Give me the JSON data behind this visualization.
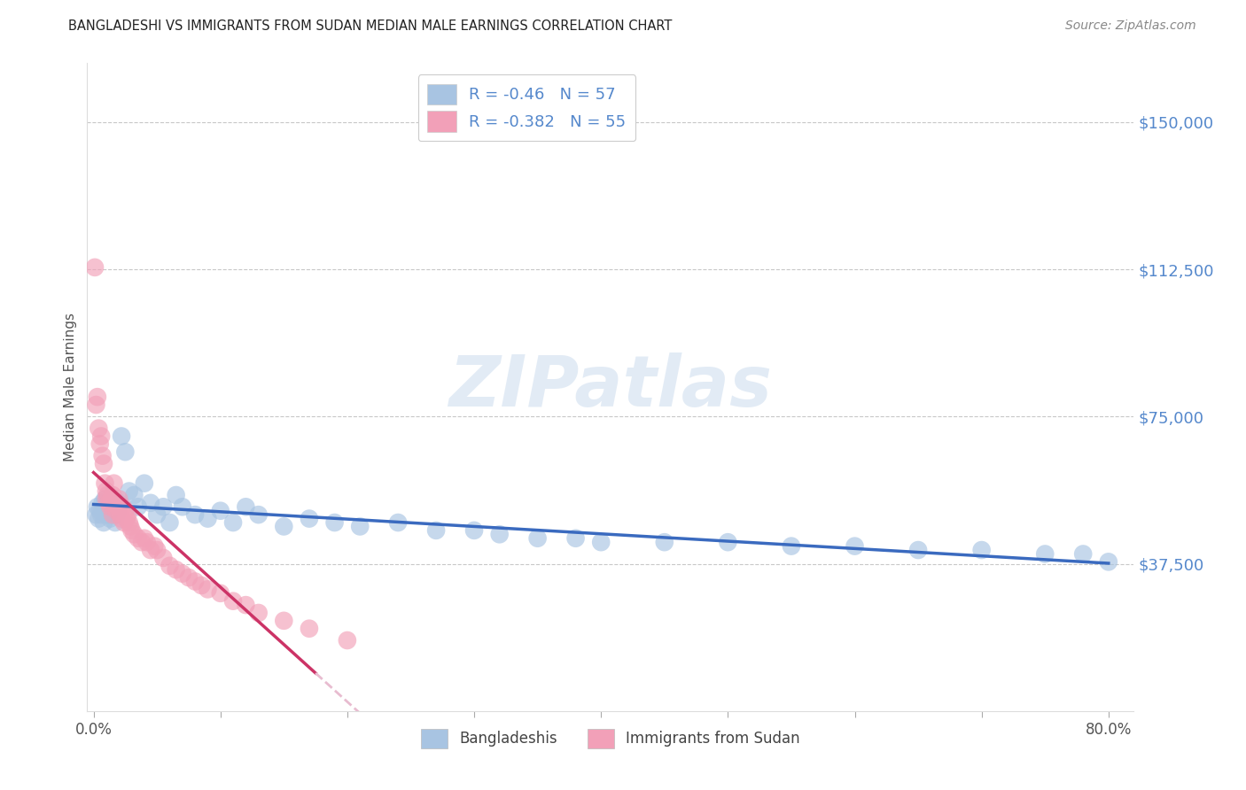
{
  "title": "BANGLADESHI VS IMMIGRANTS FROM SUDAN MEDIAN MALE EARNINGS CORRELATION CHART",
  "source": "Source: ZipAtlas.com",
  "ylabel": "Median Male Earnings",
  "watermark": "ZIPatlas",
  "legend1_label": "Bangladeshis",
  "legend2_label": "Immigrants from Sudan",
  "r1": -0.46,
  "n1": 57,
  "r2": -0.382,
  "n2": 55,
  "color1": "#a8c4e2",
  "color2": "#f2a0b8",
  "line_color1": "#3a6abf",
  "line_color2": "#cc3366",
  "line_color2_ext": "#e8bcd0",
  "background": "#ffffff",
  "grid_color": "#c8c8c8",
  "title_color": "#222222",
  "axis_label_color": "#555555",
  "right_label_color": "#5588cc",
  "source_color": "#888888",
  "y_tick_labels": [
    "$150,000",
    "$112,500",
    "$75,000",
    "$37,500"
  ],
  "y_tick_values": [
    150000,
    112500,
    75000,
    37500
  ],
  "ylim": [
    0,
    165000
  ],
  "xlim": [
    -0.005,
    0.82
  ],
  "x_tick_values": [
    0.0,
    0.1,
    0.2,
    0.3,
    0.4,
    0.5,
    0.6,
    0.7,
    0.8
  ],
  "x_tick_labels": [
    "0.0%",
    "",
    "",
    "",
    "",
    "",
    "",
    "",
    "80.0%"
  ],
  "bangladeshi_x": [
    0.002,
    0.003,
    0.004,
    0.005,
    0.006,
    0.007,
    0.008,
    0.009,
    0.01,
    0.011,
    0.012,
    0.013,
    0.014,
    0.015,
    0.016,
    0.017,
    0.018,
    0.019,
    0.02,
    0.022,
    0.025,
    0.028,
    0.032,
    0.035,
    0.04,
    0.045,
    0.05,
    0.055,
    0.06,
    0.065,
    0.07,
    0.08,
    0.09,
    0.1,
    0.11,
    0.12,
    0.13,
    0.15,
    0.17,
    0.19,
    0.21,
    0.24,
    0.27,
    0.3,
    0.32,
    0.35,
    0.38,
    0.4,
    0.45,
    0.5,
    0.55,
    0.6,
    0.65,
    0.7,
    0.75,
    0.78,
    0.8
  ],
  "bangladeshi_y": [
    50000,
    52000,
    49000,
    51000,
    50000,
    53000,
    48000,
    54000,
    52000,
    50000,
    51000,
    49000,
    53000,
    50000,
    52000,
    48000,
    50000,
    51000,
    53000,
    70000,
    66000,
    56000,
    55000,
    52000,
    58000,
    53000,
    50000,
    52000,
    48000,
    55000,
    52000,
    50000,
    49000,
    51000,
    48000,
    52000,
    50000,
    47000,
    49000,
    48000,
    47000,
    48000,
    46000,
    46000,
    45000,
    44000,
    44000,
    43000,
    43000,
    43000,
    42000,
    42000,
    41000,
    41000,
    40000,
    40000,
    38000
  ],
  "sudan_x": [
    0.001,
    0.002,
    0.003,
    0.004,
    0.005,
    0.006,
    0.007,
    0.008,
    0.009,
    0.01,
    0.01,
    0.011,
    0.012,
    0.013,
    0.014,
    0.015,
    0.015,
    0.016,
    0.017,
    0.018,
    0.019,
    0.02,
    0.021,
    0.022,
    0.023,
    0.024,
    0.025,
    0.026,
    0.027,
    0.028,
    0.029,
    0.03,
    0.032,
    0.035,
    0.038,
    0.04,
    0.042,
    0.045,
    0.048,
    0.05,
    0.055,
    0.06,
    0.065,
    0.07,
    0.075,
    0.08,
    0.085,
    0.09,
    0.1,
    0.11,
    0.12,
    0.13,
    0.15,
    0.17,
    0.2
  ],
  "sudan_y": [
    113000,
    78000,
    80000,
    72000,
    68000,
    70000,
    65000,
    63000,
    58000,
    56000,
    54000,
    55000,
    53000,
    52000,
    54000,
    55000,
    50000,
    58000,
    53000,
    51000,
    52000,
    54000,
    50000,
    49000,
    52000,
    48000,
    51000,
    49000,
    50000,
    48000,
    47000,
    46000,
    45000,
    44000,
    43000,
    44000,
    43000,
    41000,
    42000,
    41000,
    39000,
    37000,
    36000,
    35000,
    34000,
    33000,
    32000,
    31000,
    30000,
    28000,
    27000,
    25000,
    23000,
    21000,
    18000
  ]
}
